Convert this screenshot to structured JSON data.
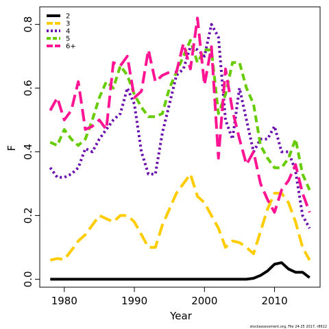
{
  "chart_data": {
    "type": "line",
    "xlabel": "Year",
    "ylabel": "F",
    "xlim": [
      1976.5,
      2016.5
    ],
    "ylim": [
      -0.025,
      0.855
    ],
    "xticks": [
      1980,
      1990,
      2000,
      2010
    ],
    "yticks": [
      0.0,
      0.2,
      0.4,
      0.6,
      0.8
    ],
    "xtick_labels": [
      "1980",
      "1990",
      "2000",
      "2010"
    ],
    "ytick_labels": [
      "0.0",
      "0.2",
      "0.4",
      "0.6",
      "0.8"
    ],
    "legend_position": "top-left",
    "grid": false,
    "caption": "stockassessment.org, File 24-25 2017, r8612",
    "x": [
      1978,
      1979,
      1980,
      1981,
      1982,
      1983,
      1984,
      1985,
      1986,
      1987,
      1988,
      1989,
      1990,
      1991,
      1992,
      1993,
      1994,
      1995,
      1996,
      1997,
      1998,
      1999,
      2000,
      2001,
      2002,
      2003,
      2004,
      2005,
      2006,
      2007,
      2008,
      2009,
      2010,
      2011,
      2012,
      2013,
      2014,
      2015
    ],
    "series": [
      {
        "name": "2",
        "color": "#000000",
        "dash": "solid",
        "values": [
          0.0,
          0.0,
          0.0,
          0.0,
          0.0,
          0.0,
          0.0,
          0.0,
          0.0,
          0.0,
          0.0,
          0.0,
          0.0,
          0.0,
          0.0,
          0.0,
          0.0,
          0.0,
          0.0,
          0.0,
          0.0,
          0.0,
          0.0,
          0.0,
          0.0,
          0.0,
          0.0,
          0.0,
          0.0,
          0.003,
          0.012,
          0.026,
          0.047,
          0.052,
          0.032,
          0.022,
          0.022,
          0.005
        ]
      },
      {
        "name": "3",
        "color": "#ffcc00",
        "dash": "long",
        "values": [
          0.06,
          0.065,
          0.062,
          0.09,
          0.12,
          0.14,
          0.17,
          0.2,
          0.19,
          0.18,
          0.2,
          0.2,
          0.18,
          0.14,
          0.1,
          0.1,
          0.17,
          0.22,
          0.27,
          0.3,
          0.33,
          0.26,
          0.24,
          0.2,
          0.16,
          0.1,
          0.12,
          0.115,
          0.1,
          0.08,
          0.15,
          0.22,
          0.27,
          0.27,
          0.24,
          0.18,
          0.1,
          0.06
        ]
      },
      {
        "name": "4",
        "color": "#6a0dad",
        "dash": "dotted",
        "values": [
          0.35,
          0.32,
          0.32,
          0.33,
          0.35,
          0.41,
          0.4,
          0.44,
          0.47,
          0.5,
          0.52,
          0.6,
          0.55,
          0.4,
          0.33,
          0.33,
          0.46,
          0.55,
          0.64,
          0.66,
          0.73,
          0.72,
          0.7,
          0.8,
          0.76,
          0.5,
          0.44,
          0.6,
          0.5,
          0.4,
          0.44,
          0.44,
          0.48,
          0.4,
          0.4,
          0.34,
          0.2,
          0.16
        ]
      },
      {
        "name": "5",
        "color": "#66cc00",
        "dash": "dashed",
        "values": [
          0.43,
          0.42,
          0.47,
          0.44,
          0.42,
          0.44,
          0.5,
          0.57,
          0.62,
          0.6,
          0.67,
          0.64,
          0.58,
          0.54,
          0.51,
          0.51,
          0.52,
          0.6,
          0.65,
          0.7,
          0.75,
          0.68,
          0.72,
          0.72,
          0.52,
          0.58,
          0.68,
          0.68,
          0.6,
          0.55,
          0.42,
          0.38,
          0.35,
          0.35,
          0.38,
          0.44,
          0.33,
          0.28
        ]
      },
      {
        "name": "6+",
        "color": "#ff1493",
        "dash": "long",
        "values": [
          0.53,
          0.57,
          0.5,
          0.53,
          0.62,
          0.47,
          0.48,
          0.5,
          0.47,
          0.68,
          0.67,
          0.7,
          0.57,
          0.59,
          0.72,
          0.62,
          0.64,
          0.65,
          0.65,
          0.74,
          0.66,
          0.82,
          0.61,
          0.73,
          0.38,
          0.66,
          0.53,
          0.44,
          0.36,
          0.4,
          0.3,
          0.25,
          0.21,
          0.28,
          0.31,
          0.36,
          0.27,
          0.21
        ]
      }
    ]
  }
}
